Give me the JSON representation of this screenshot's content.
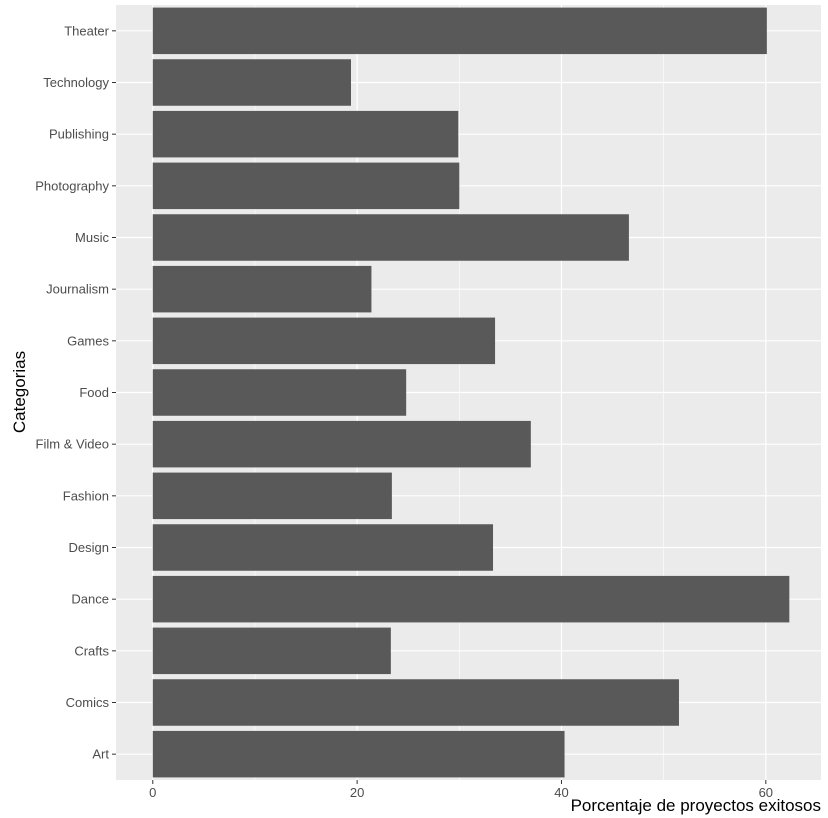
{
  "chart_data": {
    "type": "bar",
    "orientation": "horizontal",
    "title": "",
    "xlabel": "Porcentaje de proyectos exitosos",
    "ylabel": "Categorias",
    "categories": [
      "Art",
      "Comics",
      "Crafts",
      "Dance",
      "Design",
      "Fashion",
      "Film & Video",
      "Food",
      "Games",
      "Journalism",
      "Music",
      "Photography",
      "Publishing",
      "Technology",
      "Theater"
    ],
    "values": [
      40.3,
      51.5,
      23.3,
      62.3,
      33.3,
      23.4,
      37.0,
      24.8,
      33.5,
      21.4,
      46.6,
      30.0,
      29.9,
      19.4,
      60.1
    ],
    "xticks": [
      0,
      20,
      40,
      60
    ],
    "xlim": [
      -3.6,
      65.4
    ],
    "grid": true,
    "colors": {
      "bar": "#595959",
      "panel": "#ebebeb",
      "grid": "#ffffff"
    }
  }
}
